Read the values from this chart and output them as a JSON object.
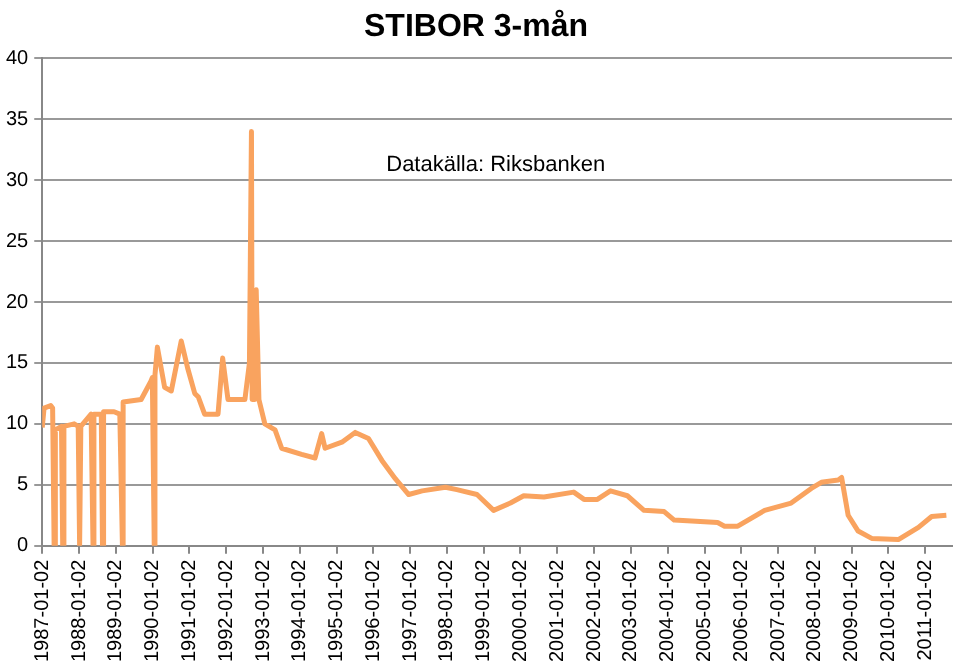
{
  "chart_data": {
    "type": "line",
    "title": "STIBOR 3-mån",
    "annotations": [
      "Datakälla: Riksbanken"
    ],
    "x": [
      "1987-01-02",
      "1987-01-20",
      "1987-03-27",
      "1987-04-15",
      "1987-04-30",
      "1987-05-12",
      "1987-07-12",
      "1987-07-24",
      "1987-08-05",
      "1987-11-15",
      "1987-12-25",
      "1988-01-08",
      "1988-01-20",
      "1988-05-01",
      "1988-05-20",
      "1988-05-29",
      "1988-08-10",
      "1988-08-22",
      "1988-09-02",
      "1988-12-15",
      "1989-02-10",
      "1989-03-08",
      "1989-03-15",
      "1989-09-10",
      "1989-12-16",
      "1989-12-30",
      "1990-01-18",
      "1990-01-25",
      "1990-02-18",
      "1990-05-01",
      "1990-07-06",
      "1990-10-13",
      "1990-12-18",
      "1991-02-24",
      "1991-04-01",
      "1991-06-02",
      "1991-10-13",
      "1991-11-28",
      "1992-01-20",
      "1992-07-06",
      "1992-08-20",
      "1992-09-09",
      "1992-09-16",
      "1992-10-13",
      "1992-10-26",
      "1992-11-22",
      "1993-01-20",
      "1993-05-01",
      "1993-07-06",
      "1994-01-20",
      "1994-06-02",
      "1994-08-07",
      "1994-09-10",
      "1995-02-24",
      "1995-07-06",
      "1995-11-15",
      "1996-03-27",
      "1996-08-07",
      "1996-12-18",
      "1997-05-01",
      "1997-12-18",
      "1998-04-10",
      "1998-10-27",
      "1999-04-10",
      "1999-09-24",
      "2000-02-03",
      "2000-08-22",
      "2001-06-13",
      "2001-09-24",
      "2002-02-03",
      "2002-06-13",
      "2002-11-28",
      "2003-05-12",
      "2003-11-28",
      "2004-03-07",
      "2005-05-12",
      "2005-07-20",
      "2005-11-28",
      "2006-08-22",
      "2007-05-12",
      "2007-11-28",
      "2008-03-07",
      "2008-08-22",
      "2008-09-24",
      "2008-11-28",
      "2009-03-07",
      "2009-07-20",
      "2010-04-10",
      "2010-10-27",
      "2011-03-07",
      "2011-07-31"
    ],
    "series": [
      {
        "color": "#f9a35f",
        "values": [
          9.7,
          11.3,
          11.5,
          11.3,
          0,
          9.5,
          9.8,
          0,
          9.8,
          10,
          9.8,
          0,
          9.8,
          10.8,
          0,
          10.8,
          10.8,
          0,
          11,
          11,
          10.8,
          0,
          11.8,
          12,
          13.5,
          13.8,
          0,
          14,
          16.3,
          13,
          12.7,
          16.8,
          14.5,
          12.5,
          12.2,
          10.8,
          10.8,
          15.4,
          12,
          12,
          15,
          34,
          12,
          12,
          21,
          12,
          10,
          9.5,
          8,
          7.5,
          7.2,
          9.2,
          8,
          8.5,
          9.3,
          8.8,
          7,
          5.5,
          4.2,
          4.5,
          4.8,
          4.6,
          4.2,
          2.9,
          3.5,
          4.1,
          4.0,
          4.4,
          3.8,
          3.8,
          4.5,
          4.1,
          2.9,
          2.8,
          2.1,
          1.9,
          1.6,
          1.6,
          2.9,
          3.5,
          4.7,
          5.2,
          5.4,
          5.6,
          2.5,
          1.2,
          0.6,
          0.5,
          1.5,
          2.4,
          2.5
        ]
      }
    ],
    "xlim": [
      "1987-01-02",
      "2011-09-25"
    ],
    "xticks": [
      "1987-01-02",
      "1988-01-02",
      "1989-01-02",
      "1990-01-02",
      "1991-01-02",
      "1992-01-02",
      "1993-01-02",
      "1994-01-02",
      "1995-01-02",
      "1996-01-02",
      "1997-01-02",
      "1998-01-02",
      "1999-01-02",
      "2000-01-02",
      "2001-01-02",
      "2002-01-02",
      "2003-01-02",
      "2004-01-02",
      "2005-01-02",
      "2006-01-02",
      "2007-01-02",
      "2008-01-02",
      "2009-01-02",
      "2010-01-02",
      "2011-01-02"
    ],
    "ylim": [
      0,
      40
    ],
    "yticks": [
      0,
      5,
      10,
      15,
      20,
      25,
      30,
      35,
      40
    ],
    "grid": "y",
    "legend": false,
    "marker": "none",
    "line_style": "solid"
  }
}
